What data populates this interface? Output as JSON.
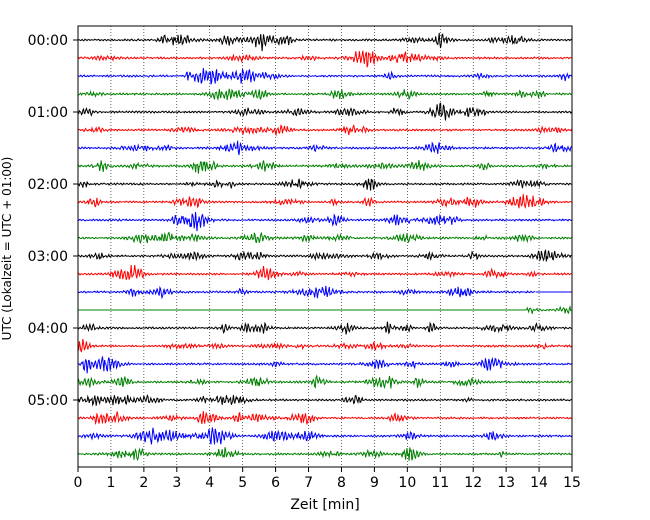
{
  "chart_data": {
    "type": "line",
    "xlabel": "Zeit  [min]",
    "ylabel": "UTC (Lokalzeit = UTC + 01:00)",
    "xlim": [
      0,
      15
    ],
    "x_ticks": [
      0,
      1,
      2,
      3,
      4,
      5,
      6,
      7,
      8,
      9,
      10,
      11,
      12,
      13,
      14,
      15
    ],
    "x_tick_labels": [
      "0",
      "1",
      "2",
      "3",
      "4",
      "5",
      "6",
      "7",
      "8",
      "9",
      "10",
      "11",
      "12",
      "13",
      "14",
      "15"
    ],
    "y_tick_labels": [
      "00:00",
      "01:00",
      "02:00",
      "03:00",
      "04:00",
      "05:00"
    ],
    "trace_colors": [
      "#000000",
      "#ff0000",
      "#0000ff",
      "#008000"
    ],
    "grid": "vertical dotted",
    "traces": [
      {
        "row": 0,
        "start": "00:00",
        "color": "#000000",
        "data_end_min": 15
      },
      {
        "row": 1,
        "start": "00:15",
        "color": "#ff0000",
        "data_end_min": 15
      },
      {
        "row": 2,
        "start": "00:30",
        "color": "#0000ff",
        "data_end_min": 15
      },
      {
        "row": 3,
        "start": "00:45",
        "color": "#008000",
        "data_end_min": 15
      },
      {
        "row": 4,
        "start": "01:00",
        "color": "#000000",
        "data_end_min": 15
      },
      {
        "row": 5,
        "start": "01:15",
        "color": "#ff0000",
        "data_end_min": 15
      },
      {
        "row": 6,
        "start": "01:30",
        "color": "#0000ff",
        "data_end_min": 15
      },
      {
        "row": 7,
        "start": "01:45",
        "color": "#008000",
        "data_end_min": 15
      },
      {
        "row": 8,
        "start": "02:00",
        "color": "#000000",
        "data_end_min": 15
      },
      {
        "row": 9,
        "start": "02:15",
        "color": "#ff0000",
        "data_end_min": 15
      },
      {
        "row": 10,
        "start": "02:30",
        "color": "#0000ff",
        "data_end_min": 15
      },
      {
        "row": 11,
        "start": "02:45",
        "color": "#008000",
        "data_end_min": 15
      },
      {
        "row": 12,
        "start": "03:00",
        "color": "#000000",
        "data_end_min": 15
      },
      {
        "row": 13,
        "start": "03:15",
        "color": "#ff0000",
        "data_end_min": 15
      },
      {
        "row": 14,
        "start": "03:30",
        "color": "#0000ff",
        "data_end_min": 13.9
      },
      {
        "row": 15,
        "start": "03:45",
        "color": "#008000",
        "data_start_min": 13.6,
        "data_end_min": 15
      },
      {
        "row": 16,
        "start": "04:00",
        "color": "#000000",
        "data_end_min": 15
      },
      {
        "row": 17,
        "start": "04:15",
        "color": "#ff0000",
        "data_end_min": 15
      },
      {
        "row": 18,
        "start": "04:30",
        "color": "#0000ff",
        "data_end_min": 15
      },
      {
        "row": 19,
        "start": "04:45",
        "color": "#008000",
        "data_end_min": 15
      },
      {
        "row": 20,
        "start": "05:00",
        "color": "#000000",
        "data_end_min": 15
      },
      {
        "row": 21,
        "start": "05:15",
        "color": "#ff0000",
        "data_end_min": 15
      },
      {
        "row": 22,
        "start": "05:30",
        "color": "#0000ff",
        "data_end_min": 15
      },
      {
        "row": 23,
        "start": "05:45",
        "color": "#008000",
        "data_end_min": 15
      }
    ]
  }
}
